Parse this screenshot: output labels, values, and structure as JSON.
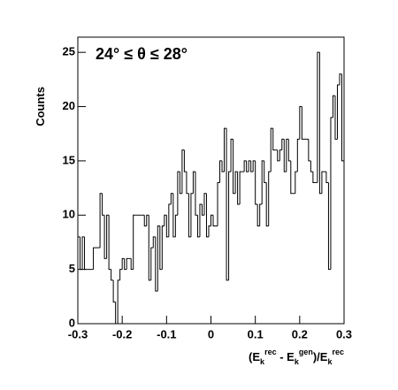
{
  "chart_data": {
    "type": "histogram",
    "title": "24° ≤ θ ≤ 28°",
    "y_label": "Counts",
    "x_label": "(E_k^rec - E_k^gen)/E_k^rec",
    "bins": [
      -0.3,
      -0.295,
      -0.29,
      -0.285,
      -0.28,
      -0.275,
      -0.27,
      -0.265,
      -0.26,
      -0.255,
      -0.25,
      -0.245,
      -0.24,
      -0.235,
      -0.23,
      -0.225,
      -0.22,
      -0.215,
      -0.21,
      -0.205,
      -0.2,
      -0.195,
      -0.19,
      -0.185,
      -0.18,
      -0.175,
      -0.17,
      -0.165,
      -0.16,
      -0.155,
      -0.15,
      -0.145,
      -0.14,
      -0.135,
      -0.13,
      -0.125,
      -0.12,
      -0.115,
      -0.11,
      -0.105,
      -0.1,
      -0.095,
      -0.09,
      -0.085,
      -0.08,
      -0.075,
      -0.07,
      -0.065,
      -0.06,
      -0.055,
      -0.05,
      -0.045,
      -0.04,
      -0.035,
      -0.03,
      -0.025,
      -0.02,
      -0.015,
      -0.01,
      -0.005,
      0,
      0.005,
      0.01,
      0.015,
      0.02,
      0.025,
      0.03,
      0.035,
      0.04,
      0.045,
      0.05,
      0.055,
      0.06,
      0.065,
      0.07,
      0.075,
      0.08,
      0.085,
      0.09,
      0.095,
      0.1,
      0.105,
      0.11,
      0.115,
      0.12,
      0.125,
      0.13,
      0.135,
      0.14,
      0.145,
      0.15,
      0.155,
      0.16,
      0.165,
      0.17,
      0.175,
      0.18,
      0.185,
      0.19,
      0.195,
      0.2,
      0.205,
      0.21,
      0.215,
      0.22,
      0.225,
      0.23,
      0.235,
      0.24,
      0.245,
      0.25,
      0.255,
      0.26,
      0.265,
      0.27,
      0.275,
      0.28,
      0.285,
      0.29,
      0.295,
      0.3
    ],
    "counts": [
      8,
      5,
      8,
      5,
      5,
      5,
      5,
      7,
      7,
      7,
      12,
      10,
      6,
      10,
      5,
      4,
      2,
      0,
      4,
      5,
      6,
      5,
      6,
      6,
      5,
      10,
      10,
      10,
      10,
      10,
      9,
      10,
      4,
      7,
      8,
      3,
      9,
      5,
      9,
      10,
      8,
      11,
      12,
      8,
      10,
      14,
      12,
      16,
      14,
      12,
      8,
      12,
      14,
      10,
      8,
      11,
      10,
      12,
      8,
      9,
      10,
      9,
      9,
      13,
      15,
      14,
      18,
      4,
      14,
      17,
      12,
      14,
      11,
      14,
      14,
      15,
      14,
      15,
      14,
      15,
      11,
      9,
      11,
      15,
      13,
      9,
      14,
      18,
      16,
      16,
      15,
      16,
      17,
      14,
      17,
      15,
      12,
      12,
      14,
      17,
      20,
      17,
      17,
      17,
      15,
      14,
      13,
      13,
      25,
      12,
      14,
      14,
      13,
      5,
      19,
      21,
      17,
      22,
      23,
      15
    ],
    "color": "#000000",
    "xlim": [
      -0.3,
      0.3
    ],
    "xticks": [
      -0.3,
      -0.2,
      -0.1,
      0,
      0.1,
      0.2,
      0.3
    ],
    "ylim": [
      0,
      26.4
    ],
    "yticks": [
      0,
      5,
      10,
      15,
      20,
      25
    ]
  }
}
